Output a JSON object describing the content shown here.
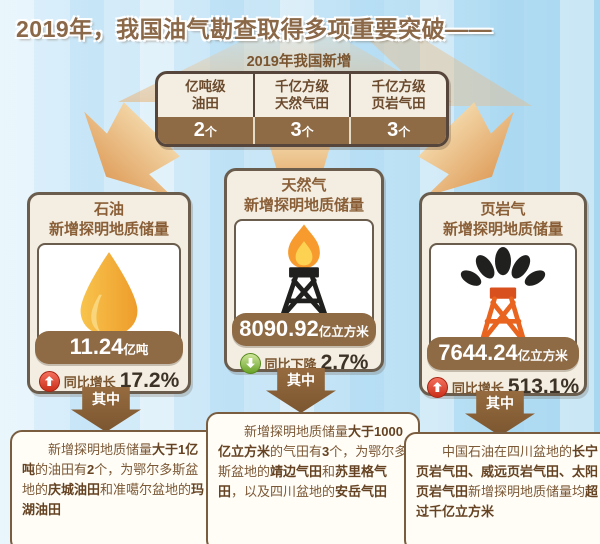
{
  "title": "2019年，我国油气勘查取得多项重要突破——",
  "summary": {
    "label": "2019年我国新增",
    "items": [
      {
        "name_line1": "亿吨级",
        "name_line2": "油田",
        "count": "2",
        "count_unit": "个"
      },
      {
        "name_line1": "千亿方级",
        "name_line2": "天然气田",
        "count": "3",
        "count_unit": "个"
      },
      {
        "name_line1": "千亿方级",
        "name_line2": "页岩气田",
        "count": "3",
        "count_unit": "个"
      }
    ]
  },
  "cards": [
    {
      "title_line1": "石油",
      "title_line2": "新增探明地质储量",
      "icon": "oil-drop-icon",
      "value": "11.24",
      "unit": "亿吨",
      "trend_direction": "up",
      "trend_label": "同比增长",
      "trend_value": "17.2%",
      "connector_label": "其中",
      "detail": [
        {
          "t": "新增探明地质储量",
          "b": false
        },
        {
          "t": "大于1亿吨",
          "b": true
        },
        {
          "t": "的油田有",
          "b": false
        },
        {
          "t": "2",
          "b": true
        },
        {
          "t": "个，为鄂尔多斯盆地的",
          "b": false
        },
        {
          "t": "庆城油田",
          "b": true
        },
        {
          "t": "和准噶尔盆地的",
          "b": false
        },
        {
          "t": "玛湖油田",
          "b": true
        }
      ]
    },
    {
      "title_line1": "天然气",
      "title_line2": "新增探明地质储量",
      "icon": "gas-derrick-flame-icon",
      "value": "8090.92",
      "unit": "亿立方米",
      "trend_direction": "down",
      "trend_label": "同比下降",
      "trend_value": "2.7%",
      "connector_label": "其中",
      "detail": [
        {
          "t": "新增探明地质储量",
          "b": false
        },
        {
          "t": "大于1000亿立方米",
          "b": true
        },
        {
          "t": "的气田有",
          "b": false
        },
        {
          "t": "3",
          "b": true
        },
        {
          "t": "个，为鄂尔多斯盆地的",
          "b": false
        },
        {
          "t": "靖边气田",
          "b": true
        },
        {
          "t": "和",
          "b": false
        },
        {
          "t": "苏里格气田",
          "b": true
        },
        {
          "t": "，以及四川盆地的",
          "b": false
        },
        {
          "t": "安岳气田",
          "b": true
        }
      ]
    },
    {
      "title_line1": "页岩气",
      "title_line2": "新增探明地质储量",
      "icon": "shale-gusher-derrick-icon",
      "value": "7644.24",
      "unit": "亿立方米",
      "trend_direction": "up",
      "trend_label": "同比增长",
      "trend_value": "513.1%",
      "connector_label": "其中",
      "detail": [
        {
          "t": "中国石油在四川盆地的",
          "b": false
        },
        {
          "t": "长宁页岩气田、威远页岩气田、太阳页岩气田",
          "b": true
        },
        {
          "t": "新增探明地质储量均",
          "b": false
        },
        {
          "t": "超过千亿立方米",
          "b": true
        }
      ]
    }
  ],
  "colors": {
    "background_blue": "#c7e6f7",
    "band_brown": "#8e6a45",
    "text_brown": "#7a552f",
    "dark_border": "#56453a",
    "arrow_tan": "#e5aa6c",
    "up_red": "#d0331d",
    "down_green": "#6aa32a",
    "oil_orange": "#f2a93b",
    "flame_orange": "#f79b2e",
    "flame_yellow": "#fdd252",
    "derrick_black": "#20201e",
    "shale_orange": "#e8641f"
  }
}
